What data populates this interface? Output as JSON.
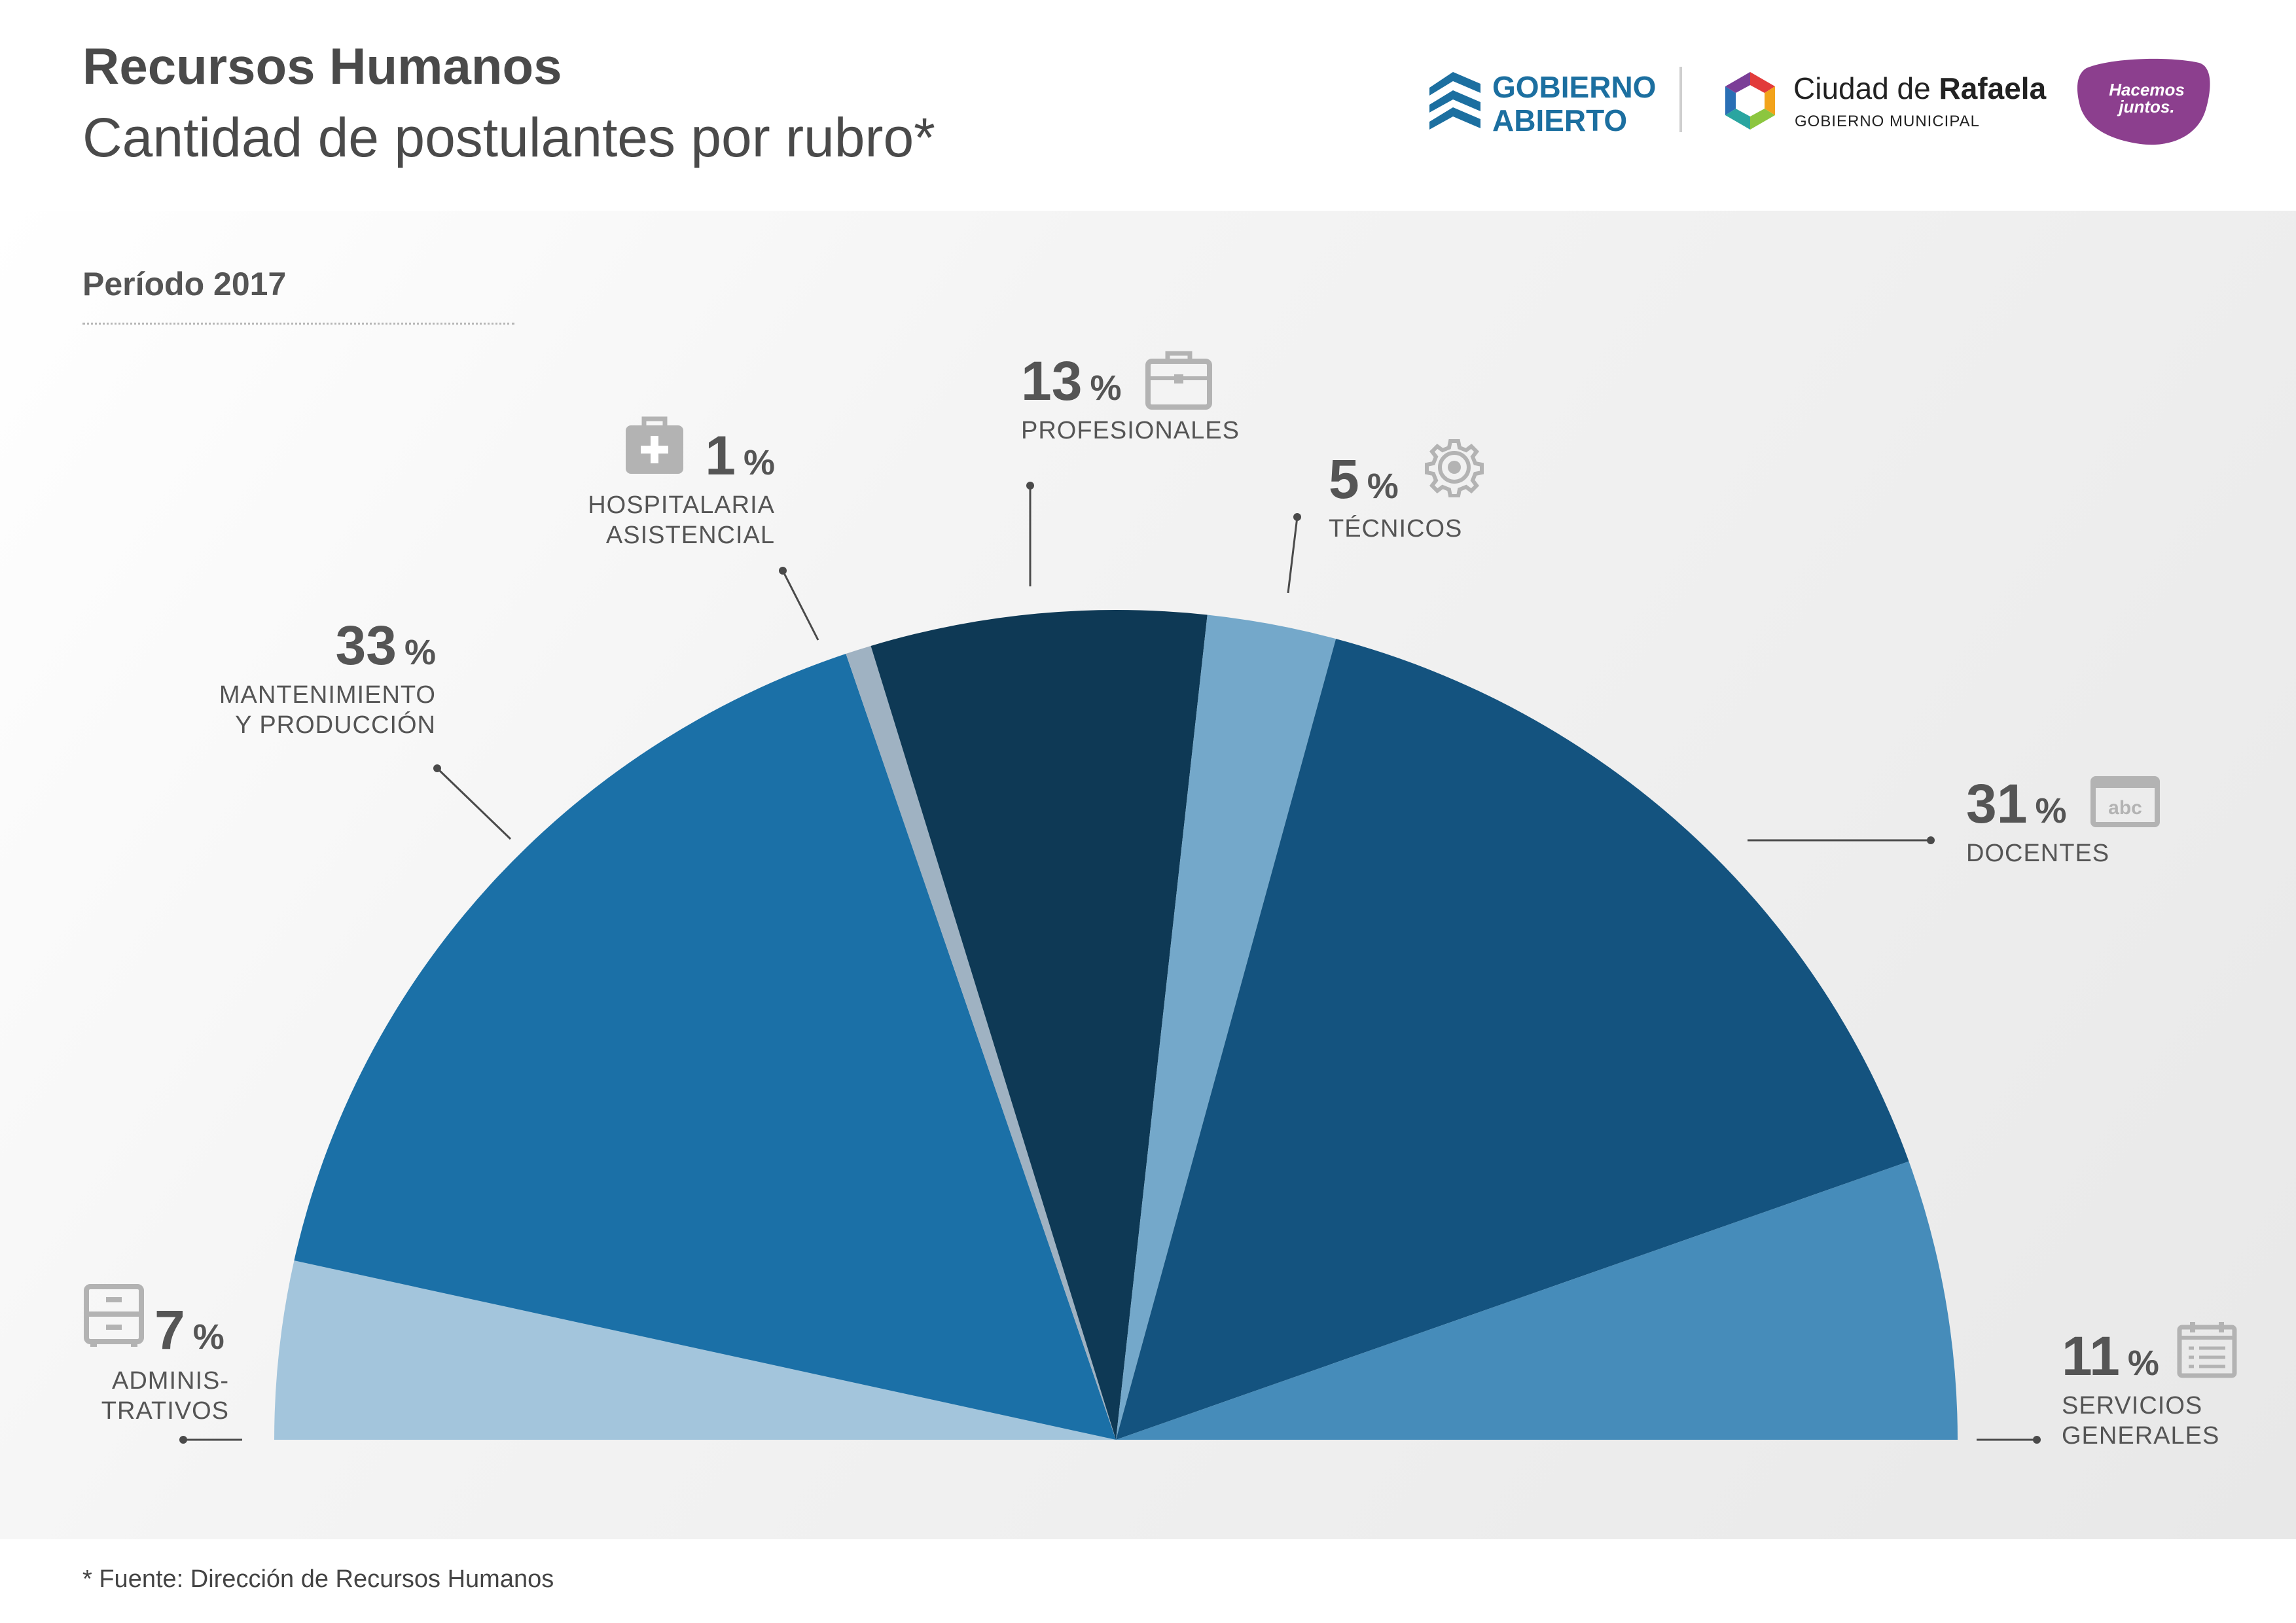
{
  "header": {
    "title": "Recursos Humanos",
    "subtitle": "Cantidad de postulantes por rubro*"
  },
  "logos": {
    "gobierno_abierto_line1": "GOBIERNO",
    "gobierno_abierto_line2": "ABIERTO",
    "ciudad_prefix": "Ciudad de ",
    "ciudad_name": "Rafaela",
    "ciudad_sub": "GOBIERNO MUNICIPAL",
    "hacemos_line1": "Hacemos",
    "hacemos_line2": "juntos."
  },
  "period": "Período 2017",
  "footnote": "* Fuente: Dirección de Recursos Humanos",
  "colors": {
    "administrativos": "#a3c5dc",
    "mantenimiento": "#1b70a7",
    "hospitalaria": "#9fb2c2",
    "profesionales": "#0e3955",
    "tecnicos": "#74a8ca",
    "docentes": "#14537f",
    "servicios": "#468cba",
    "text": "#4a4a4a",
    "icon": "#b3b3b3",
    "brand_blue": "#1c6fa0",
    "brand_purple": "#8c3f8e"
  },
  "chart_data": {
    "type": "pie",
    "variant": "semicircle",
    "title": "Cantidad de postulantes por rubro*",
    "period": "Período 2017",
    "slices": [
      {
        "key": "administrativos",
        "name": "ADMINIS-\nTRATIVOS",
        "value": 7,
        "percent_label": "7",
        "icon": "cabinet-icon"
      },
      {
        "key": "mantenimiento",
        "name": "MANTENIMIENTO\nY PRODUCCIÓN",
        "value": 33,
        "percent_label": "33",
        "icon": ""
      },
      {
        "key": "hospitalaria",
        "name": "HOSPITALARIA\nASISTENCIAL",
        "value": 1,
        "percent_label": "1",
        "icon": "medical-kit-icon"
      },
      {
        "key": "profesionales",
        "name": "PROFESIONALES",
        "value": 13,
        "percent_label": "13",
        "icon": "briefcase-icon"
      },
      {
        "key": "tecnicos",
        "name": "TÉCNICOS",
        "value": 5,
        "percent_label": "5",
        "icon": "gear-icon"
      },
      {
        "key": "docentes",
        "name": "DOCENTES",
        "value": 31,
        "percent_label": "31",
        "icon": "abc-board-icon"
      },
      {
        "key": "servicios",
        "name": "SERVICIOS\nGENERALES",
        "value": 11,
        "percent_label": "11",
        "icon": "calendar-list-icon"
      }
    ],
    "percent_sign": "%"
  }
}
